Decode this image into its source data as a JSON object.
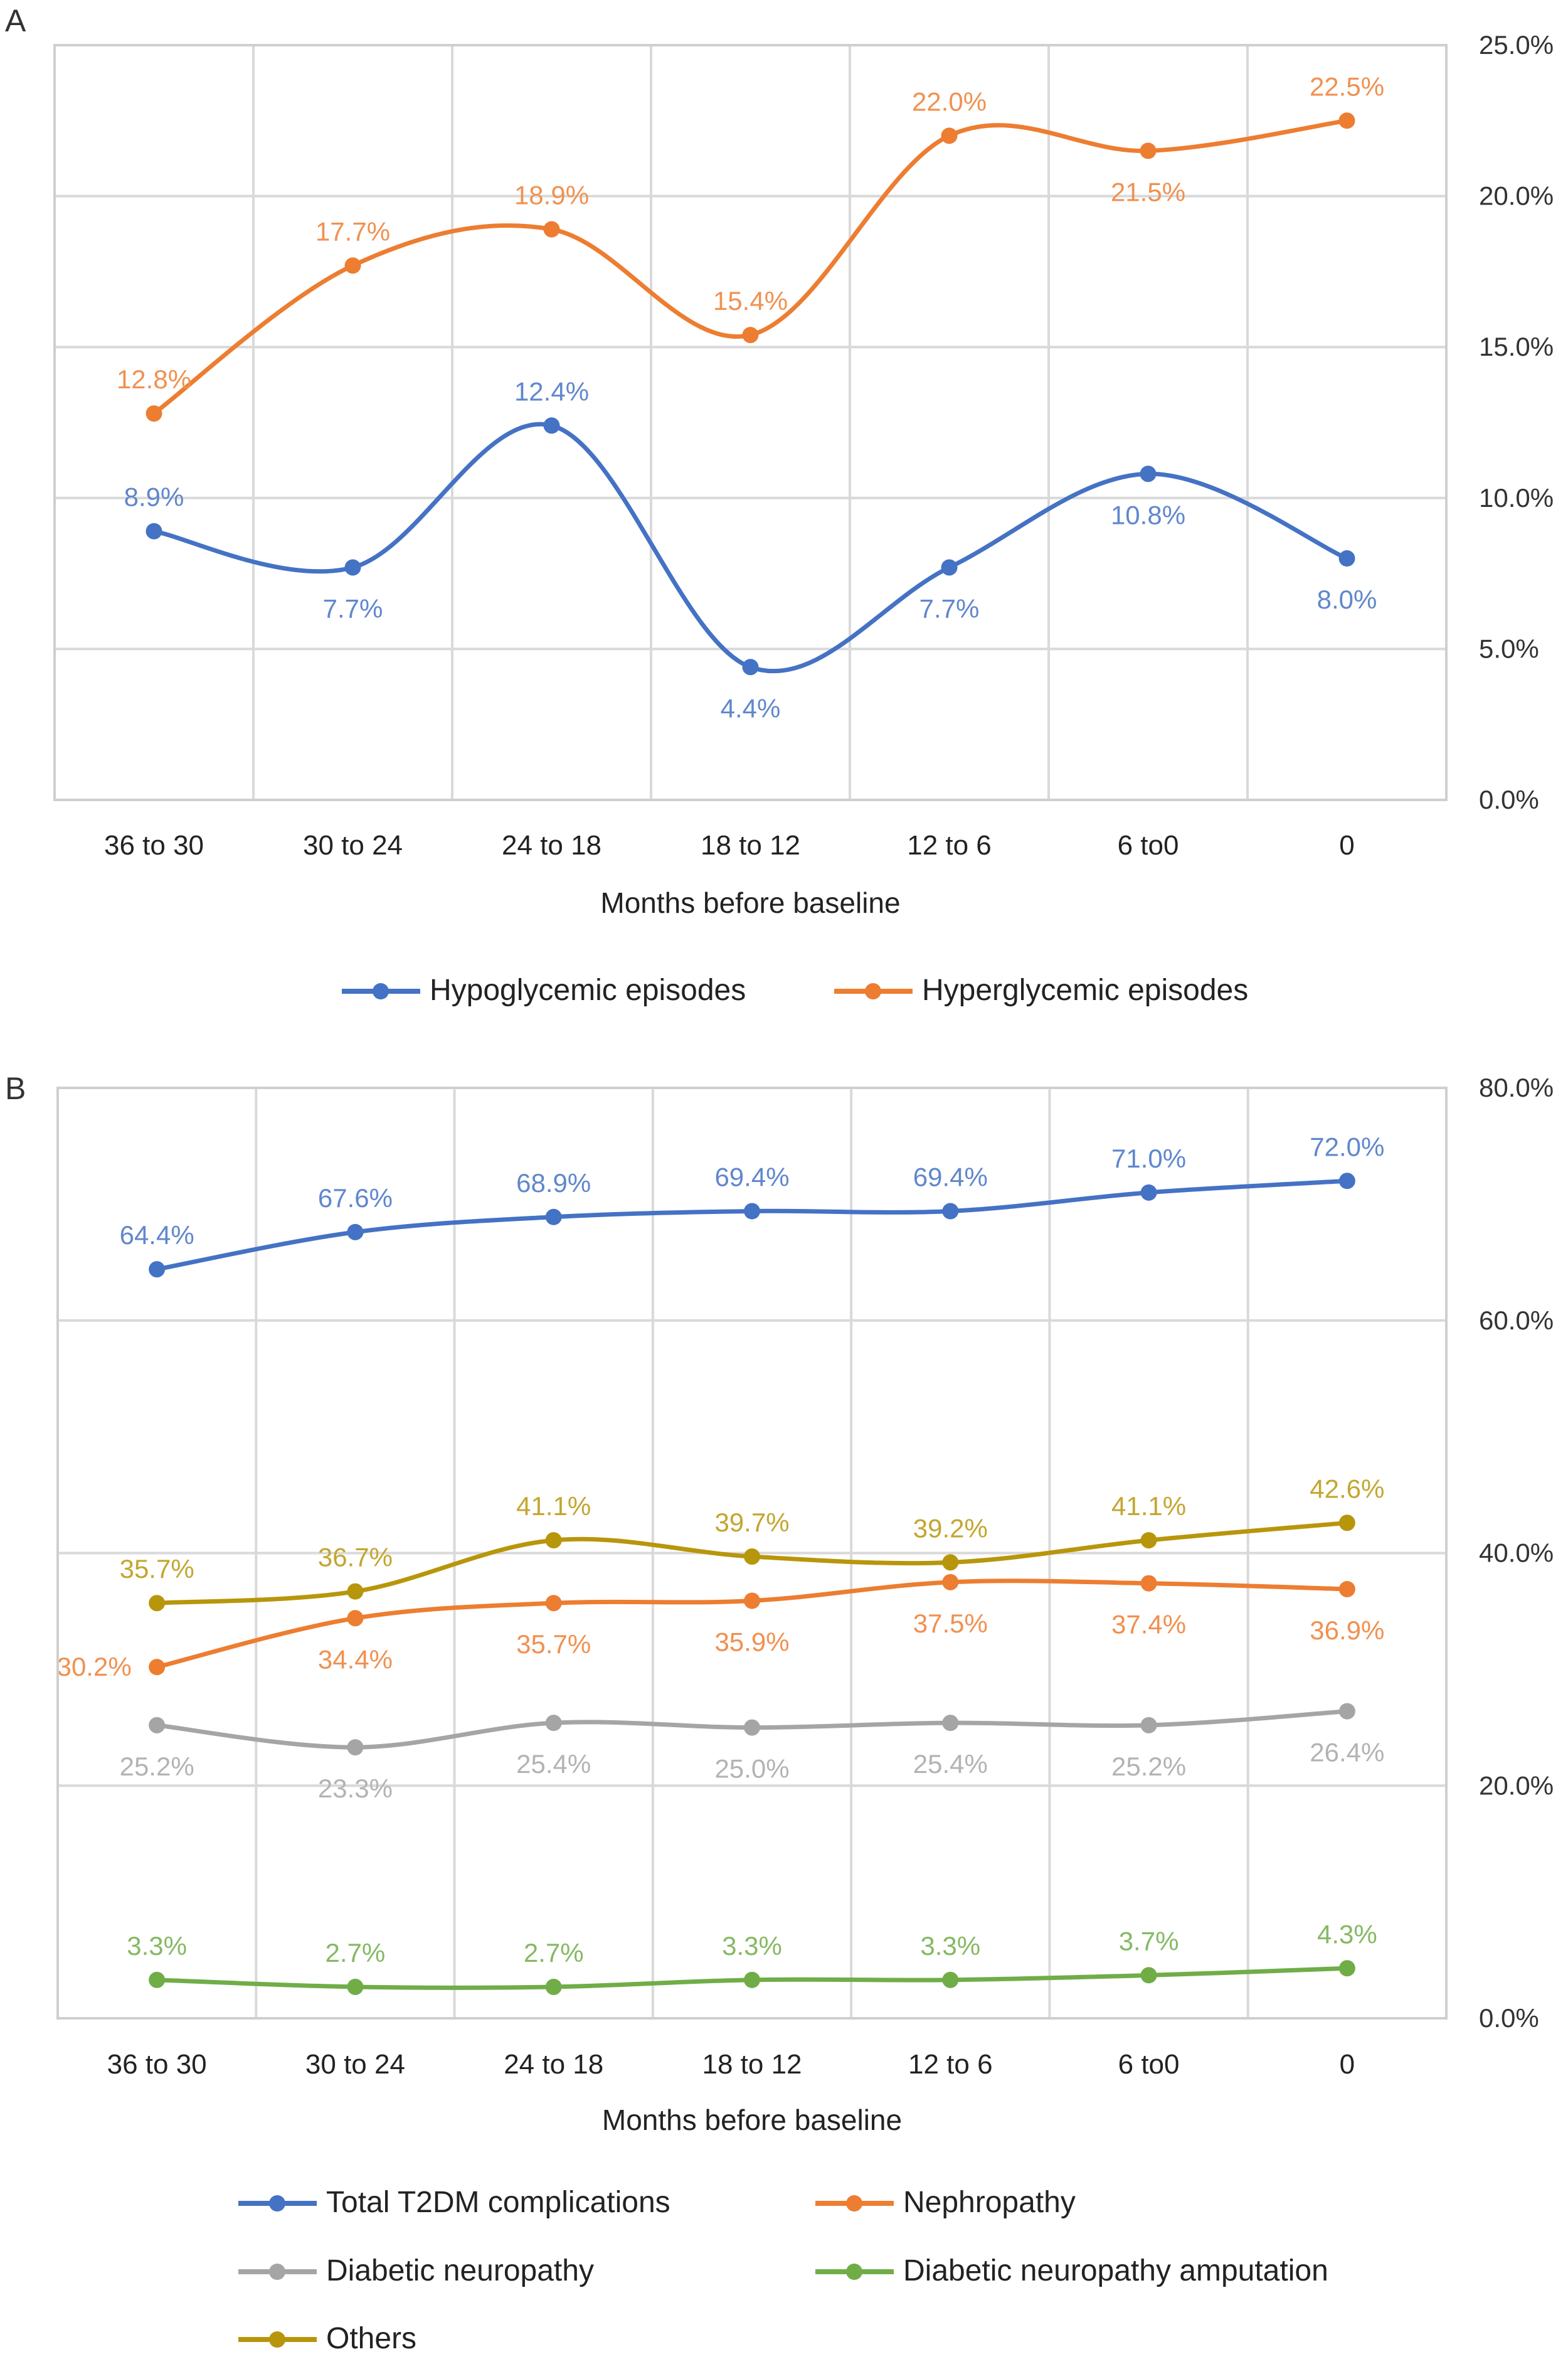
{
  "chart_data": [
    {
      "panel_label": "A",
      "type": "line",
      "categories": [
        "36 to 30",
        "30 to 24",
        "24 to 18",
        "18 to 12",
        "12 to 6",
        "6 to0",
        "0"
      ],
      "xlabel": "Months before baseline",
      "ylabel": "",
      "ylim": [
        0,
        25
      ],
      "yticks": [
        "0.0%",
        "5.0%",
        "10.0%",
        "15.0%",
        "20.0%",
        "25.0%"
      ],
      "y_axis_side": "right",
      "grid": true,
      "legend_position": "bottom",
      "series": [
        {
          "name": "Hypoglycemic episodes",
          "color": "#4472C4",
          "values": [
            8.9,
            7.7,
            12.4,
            4.4,
            7.7,
            10.8,
            8.0
          ],
          "labels": [
            "8.9%",
            "7.7%",
            "12.4%",
            "4.4%",
            "7.7%",
            "10.8%",
            "8.0%"
          ]
        },
        {
          "name": "Hyperglycemic episodes",
          "color": "#ED7D31",
          "values": [
            12.8,
            17.7,
            18.9,
            15.4,
            22.0,
            21.5,
            22.5
          ],
          "labels": [
            "12.8%",
            "17.7%",
            "18.9%",
            "15.4%",
            "22.0%",
            "21.5%",
            "22.5%"
          ]
        }
      ]
    },
    {
      "panel_label": "B",
      "type": "line",
      "categories": [
        "36 to 30",
        "30 to 24",
        "24 to 18",
        "18 to 12",
        "12 to 6",
        "6 to0",
        "0"
      ],
      "xlabel": "Months before baseline",
      "ylabel": "",
      "ylim": [
        0,
        80
      ],
      "yticks": [
        "0.0%",
        "20.0%",
        "40.0%",
        "60.0%",
        "80.0%"
      ],
      "y_axis_side": "right",
      "grid": true,
      "legend_position": "bottom",
      "series": [
        {
          "name": "Total T2DM complications",
          "color": "#4472C4",
          "values": [
            64.4,
            67.6,
            68.9,
            69.4,
            69.4,
            71.0,
            72.0
          ],
          "labels": [
            "64.4%",
            "67.6%",
            "68.9%",
            "69.4%",
            "69.4%",
            "71.0%",
            "72.0%"
          ]
        },
        {
          "name": "Nephropathy",
          "color": "#ED7D31",
          "values": [
            30.2,
            34.4,
            35.7,
            35.9,
            37.5,
            37.4,
            36.9
          ],
          "labels": [
            "30.2%",
            "34.4%",
            "35.7%",
            "35.9%",
            "37.5%",
            "37.4%",
            "36.9%"
          ]
        },
        {
          "name": "Diabetic neuropathy",
          "color": "#A5A5A5",
          "values": [
            25.2,
            23.3,
            25.4,
            25.0,
            25.4,
            25.2,
            26.4
          ],
          "labels": [
            "25.2%",
            "23.3%",
            "25.4%",
            "25.0%",
            "25.4%",
            "25.2%",
            "26.4%"
          ]
        },
        {
          "name": "Diabetic neuropathy amputation",
          "color": "#70AD47",
          "values": [
            3.3,
            2.7,
            2.7,
            3.3,
            3.3,
            3.7,
            4.3
          ],
          "labels": [
            "3.3%",
            "2.7%",
            "2.7%",
            "3.3%",
            "3.3%",
            "3.7%",
            "4.3%"
          ]
        },
        {
          "name": "Others",
          "color": "#B8960C",
          "values": [
            35.7,
            36.7,
            41.1,
            39.7,
            39.2,
            41.1,
            42.6
          ],
          "labels": [
            "35.7%",
            "36.7%",
            "41.1%",
            "39.7%",
            "39.2%",
            "41.1%",
            "42.6%"
          ]
        }
      ]
    }
  ]
}
